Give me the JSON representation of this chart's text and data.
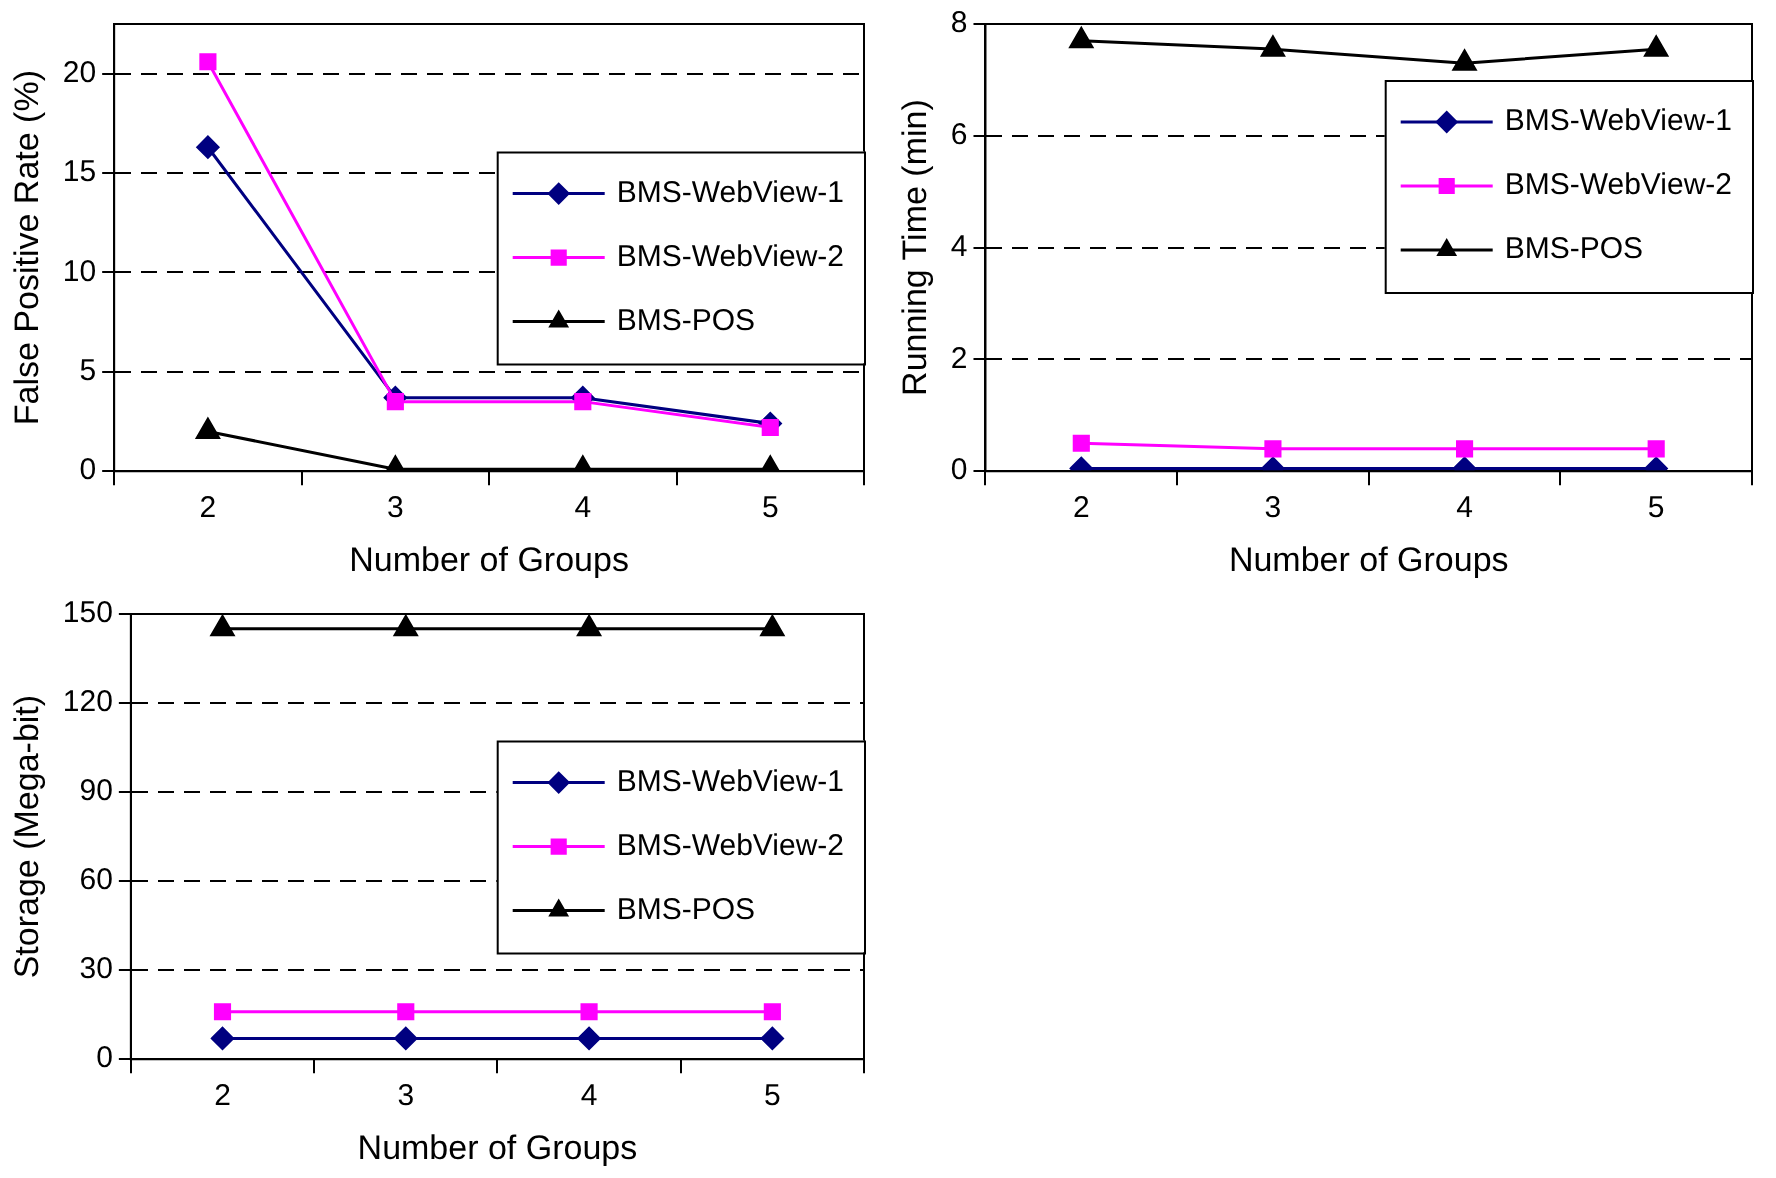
{
  "chart_data": [
    {
      "type": "line",
      "xlabel": "Number of Groups",
      "ylabel": "False Positive Rate (%)",
      "categories": [
        "2",
        "3",
        "4",
        "5"
      ],
      "ylim": [
        0,
        22.5
      ],
      "yticks": [
        0,
        5,
        10,
        15,
        20
      ],
      "grid": "y",
      "legend": "right",
      "series": [
        {
          "name": "BMS-WebView-1",
          "color": "#000080",
          "marker": "diamond",
          "values": [
            16.3,
            3.7,
            3.7,
            2.4
          ]
        },
        {
          "name": "BMS-WebView-2",
          "color": "#ff00ff",
          "marker": "square",
          "values": [
            20.6,
            3.5,
            3.5,
            2.2
          ]
        },
        {
          "name": "BMS-POS",
          "color": "#000000",
          "marker": "triangle",
          "values": [
            2.0,
            0.1,
            0.1,
            0.1
          ]
        }
      ]
    },
    {
      "type": "line",
      "xlabel": "Number of Groups",
      "ylabel": "Running Time (min)",
      "categories": [
        "2",
        "3",
        "4",
        "5"
      ],
      "ylim": [
        0,
        8
      ],
      "yticks": [
        0,
        2,
        4,
        6,
        8
      ],
      "grid": "y",
      "legend": "top right",
      "series": [
        {
          "name": "BMS-WebView-1",
          "color": "#000080",
          "marker": "diamond",
          "values": [
            0.05,
            0.05,
            0.05,
            0.05
          ]
        },
        {
          "name": "BMS-WebView-2",
          "color": "#ff00ff",
          "marker": "square",
          "values": [
            0.5,
            0.4,
            0.4,
            0.4
          ]
        },
        {
          "name": "BMS-POS",
          "color": "#000000",
          "marker": "triangle",
          "values": [
            7.7,
            7.55,
            7.3,
            7.55
          ]
        }
      ]
    },
    {
      "type": "line",
      "xlabel": "Number of Groups",
      "ylabel": "Storage (Mega-bit)",
      "categories": [
        "2",
        "3",
        "4",
        "5"
      ],
      "ylim": [
        0,
        150
      ],
      "yticks": [
        0,
        30,
        60,
        90,
        120,
        150
      ],
      "grid": "y",
      "legend": "right",
      "series": [
        {
          "name": "BMS-WebView-1",
          "color": "#000080",
          "marker": "diamond",
          "values": [
            7,
            7,
            7,
            7
          ]
        },
        {
          "name": "BMS-WebView-2",
          "color": "#ff00ff",
          "marker": "square",
          "values": [
            16,
            16,
            16,
            16
          ]
        },
        {
          "name": "BMS-POS",
          "color": "#000000",
          "marker": "triangle",
          "values": [
            145,
            145,
            145,
            145
          ]
        }
      ]
    }
  ]
}
